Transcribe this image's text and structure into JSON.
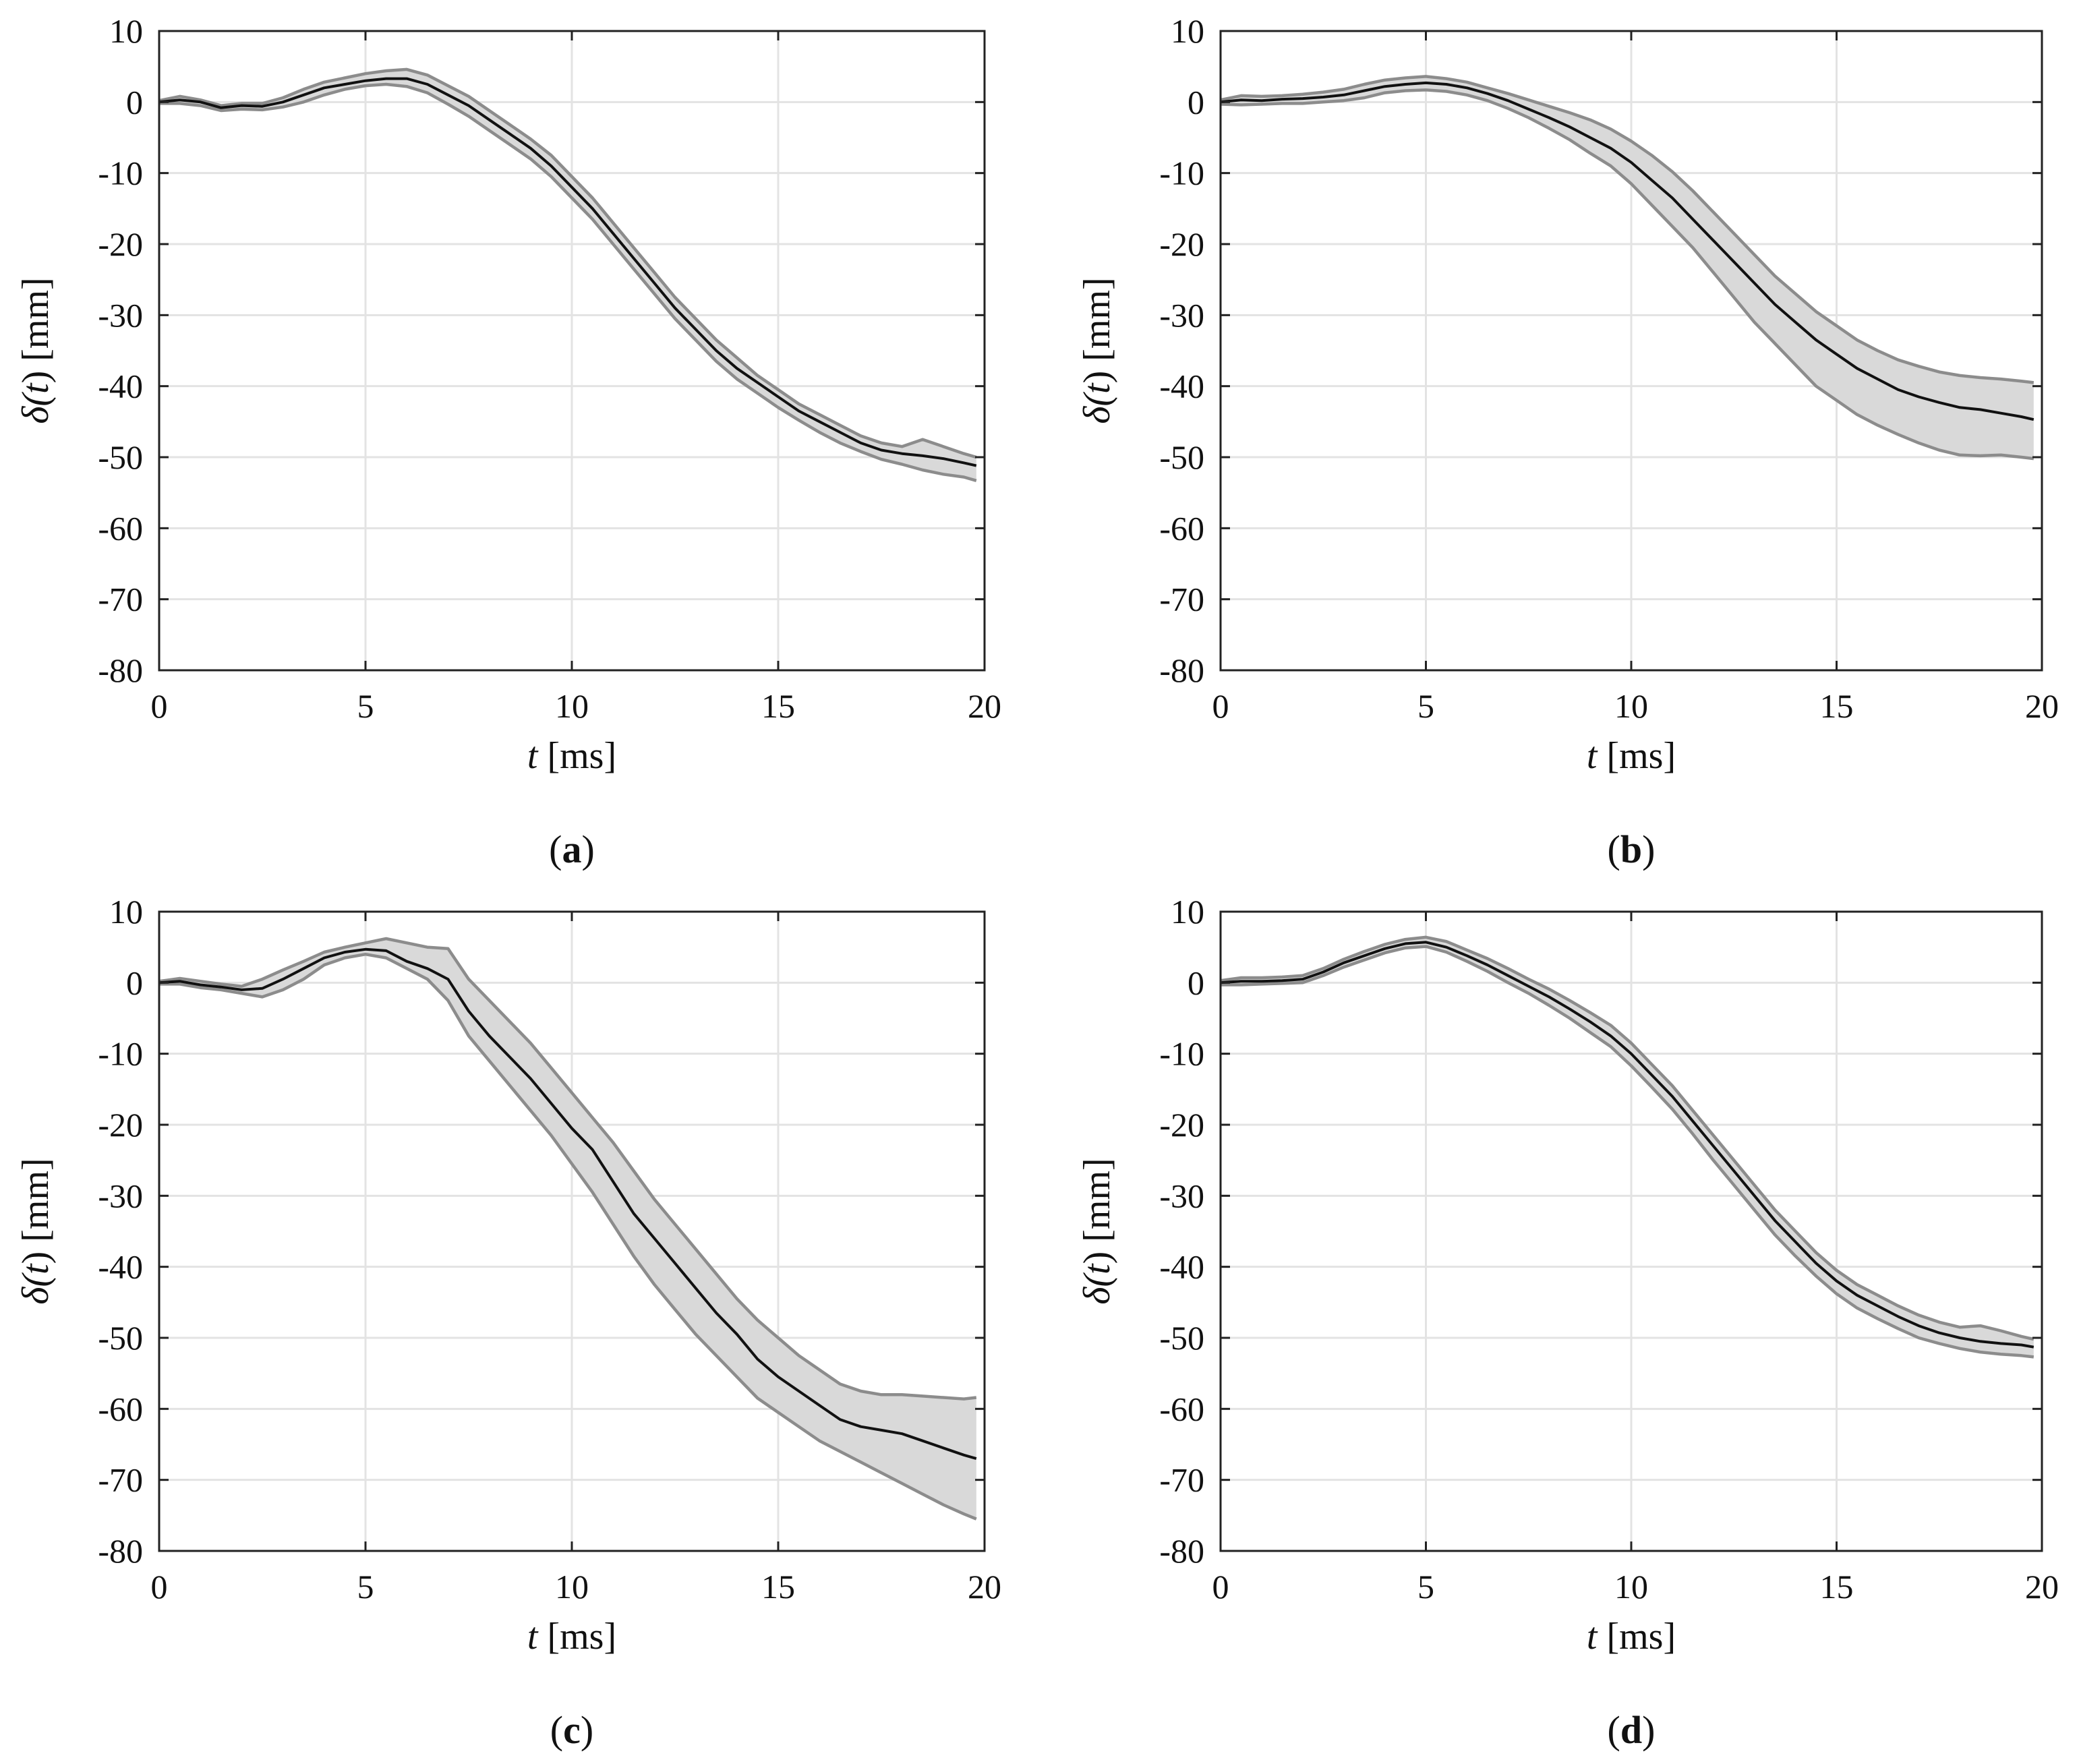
{
  "figure": {
    "panel_count": 4
  },
  "chart_data": [
    {
      "panel": "a",
      "type": "line",
      "caption": {
        "open": "(",
        "letter": "a",
        "close": ")"
      },
      "xlabel": {
        "symbol": "t",
        "unit": "[ms]"
      },
      "ylabel": {
        "prefix": "δ(",
        "symbol": "t",
        "suffix": ")",
        "unit": "[mm]"
      },
      "xlim": [
        0,
        20
      ],
      "ylim": [
        -80,
        10
      ],
      "xticks": [
        0,
        5,
        10,
        15,
        20
      ],
      "xtick_labels": [
        "0",
        "5",
        "10",
        "15",
        "20"
      ],
      "yticks": [
        10,
        0,
        -10,
        -20,
        -30,
        -40,
        -50,
        -60,
        -70,
        -80
      ],
      "ytick_labels": [
        "10",
        "0",
        "-10",
        "-20",
        "-30",
        "-40",
        "-50",
        "-60",
        "-70",
        "-80"
      ],
      "grid": true,
      "x": [
        0,
        0.5,
        1,
        1.5,
        2,
        2.5,
        3,
        3.5,
        4,
        4.5,
        5,
        5.5,
        6,
        6.5,
        7,
        7.5,
        8,
        8.5,
        9,
        9.5,
        10,
        10.5,
        11,
        11.5,
        12,
        12.5,
        13,
        13.5,
        14,
        14.5,
        15,
        15.5,
        16,
        16.5,
        17,
        17.5,
        18,
        18.5,
        19,
        19.5,
        19.8
      ],
      "mean": [
        0,
        0.3,
        0,
        -0.8,
        -0.5,
        -0.6,
        0,
        1,
        2,
        2.5,
        3,
        3.3,
        3.3,
        2.5,
        1,
        -0.5,
        -2.5,
        -4.5,
        -6.5,
        -9,
        -12,
        -15,
        -18.5,
        -22,
        -25.5,
        -29,
        -32,
        -35,
        -37.5,
        -39.5,
        -41.5,
        -43.5,
        -45,
        -46.5,
        -48,
        -49,
        -49.5,
        -49.8,
        -50.2,
        -50.8,
        -51.2
      ],
      "upper": [
        0.2,
        0.8,
        0.3,
        -0.5,
        -0.2,
        -0.2,
        0.6,
        1.8,
        2.8,
        3.4,
        4,
        4.4,
        4.6,
        3.8,
        2.3,
        0.8,
        -1.2,
        -3.2,
        -5.2,
        -7.5,
        -10.5,
        -13.5,
        -17,
        -20.5,
        -24,
        -27.5,
        -30.5,
        -33.5,
        -36,
        -38.5,
        -40.5,
        -42.5,
        -44,
        -45.5,
        -47,
        -48,
        -48.5,
        -47.5,
        -48.5,
        -49.5,
        -50
      ],
      "lower": [
        -0.2,
        -0.2,
        -0.5,
        -1.2,
        -1,
        -1.1,
        -0.7,
        0,
        1,
        1.8,
        2.3,
        2.5,
        2.2,
        1.3,
        -0.3,
        -2,
        -4,
        -6,
        -8,
        -10.5,
        -13.5,
        -16.5,
        -20,
        -23.5,
        -27,
        -30.5,
        -33.5,
        -36.5,
        -39,
        -41,
        -43,
        -44.8,
        -46.5,
        -48,
        -49.2,
        -50.3,
        -51,
        -51.8,
        -52.4,
        -52.8,
        -53.3
      ]
    },
    {
      "panel": "b",
      "type": "line",
      "caption": {
        "open": "(",
        "letter": "b",
        "close": ")"
      },
      "xlabel": {
        "symbol": "t",
        "unit": "[ms]"
      },
      "ylabel": {
        "prefix": "δ(",
        "symbol": "t",
        "suffix": ")",
        "unit": "[mm]"
      },
      "xlim": [
        0,
        20
      ],
      "ylim": [
        -80,
        10
      ],
      "xticks": [
        0,
        5,
        10,
        15,
        20
      ],
      "xtick_labels": [
        "0",
        "5",
        "10",
        "15",
        "20"
      ],
      "yticks": [
        10,
        0,
        -10,
        -20,
        -30,
        -40,
        -50,
        -60,
        -70,
        -80
      ],
      "ytick_labels": [
        "10",
        "0",
        "-10",
        "-20",
        "-30",
        "-40",
        "-50",
        "-60",
        "-70",
        "-80"
      ],
      "grid": true,
      "x": [
        0,
        0.5,
        1,
        1.5,
        2,
        2.5,
        3,
        3.5,
        4,
        4.5,
        5,
        5.5,
        6,
        6.5,
        7,
        7.5,
        8,
        8.5,
        9,
        9.5,
        10,
        10.5,
        11,
        11.5,
        12,
        12.5,
        13,
        13.5,
        14,
        14.5,
        15,
        15.5,
        16,
        16.5,
        17,
        17.5,
        18,
        18.5,
        19,
        19.5,
        19.8
      ],
      "mean": [
        0,
        0.3,
        0.2,
        0.4,
        0.5,
        0.7,
        1,
        1.6,
        2.2,
        2.5,
        2.7,
        2.5,
        2,
        1.2,
        0.2,
        -1,
        -2.2,
        -3.5,
        -5,
        -6.5,
        -8.5,
        -11,
        -13.5,
        -16.5,
        -19.5,
        -22.5,
        -25.5,
        -28.5,
        -31,
        -33.5,
        -35.5,
        -37.5,
        -39,
        -40.5,
        -41.5,
        -42.3,
        -43,
        -43.3,
        -43.8,
        -44.3,
        -44.7
      ],
      "upper": [
        0.3,
        0.9,
        0.8,
        0.9,
        1.1,
        1.4,
        1.8,
        2.5,
        3.1,
        3.4,
        3.6,
        3.3,
        2.8,
        2,
        1.2,
        0.3,
        -0.6,
        -1.5,
        -2.5,
        -3.8,
        -5.5,
        -7.5,
        -9.8,
        -12.5,
        -15.5,
        -18.5,
        -21.5,
        -24.5,
        -27,
        -29.5,
        -31.5,
        -33.5,
        -35,
        -36.3,
        -37.2,
        -38,
        -38.5,
        -38.8,
        -39,
        -39.3,
        -39.5
      ],
      "lower": [
        -0.3,
        -0.4,
        -0.3,
        -0.2,
        -0.2,
        0,
        0.2,
        0.6,
        1.3,
        1.6,
        1.7,
        1.5,
        1,
        0.2,
        -0.9,
        -2.2,
        -3.7,
        -5.3,
        -7.2,
        -9,
        -11.5,
        -14.5,
        -17.5,
        -20.5,
        -24,
        -27.5,
        -31,
        -34,
        -37,
        -40,
        -42,
        -44,
        -45.5,
        -46.8,
        -48,
        -49,
        -49.7,
        -49.8,
        -49.7,
        -50,
        -50.2
      ]
    },
    {
      "panel": "c",
      "type": "line",
      "caption": {
        "open": "(",
        "letter": "c",
        "close": ")"
      },
      "xlabel": {
        "symbol": "t",
        "unit": "[ms]"
      },
      "ylabel": {
        "prefix": "δ(",
        "symbol": "t",
        "suffix": ")",
        "unit": "[mm]"
      },
      "xlim": [
        0,
        20
      ],
      "ylim": [
        -80,
        10
      ],
      "xticks": [
        0,
        5,
        10,
        15,
        20
      ],
      "xtick_labels": [
        "0",
        "5",
        "10",
        "15",
        "20"
      ],
      "yticks": [
        10,
        0,
        -10,
        -20,
        -30,
        -40,
        -50,
        -60,
        -70,
        -80
      ],
      "ytick_labels": [
        "10",
        "0",
        "-10",
        "-20",
        "-30",
        "-40",
        "-50",
        "-60",
        "-70",
        "-80"
      ],
      "grid": true,
      "x": [
        0,
        0.5,
        1,
        1.5,
        2,
        2.5,
        3,
        3.5,
        4,
        4.5,
        5,
        5.5,
        6,
        6.5,
        7,
        7.5,
        8,
        8.5,
        9,
        9.5,
        10,
        10.5,
        11,
        11.5,
        12,
        12.5,
        13,
        13.5,
        14,
        14.5,
        15,
        15.5,
        16,
        16.5,
        17,
        17.5,
        18,
        18.5,
        19,
        19.5,
        19.8
      ],
      "mean": [
        0,
        0.2,
        -0.3,
        -0.6,
        -1,
        -0.8,
        0.5,
        2,
        3.5,
        4.3,
        4.7,
        4.5,
        3,
        2,
        0.5,
        -4,
        -7.5,
        -10.5,
        -13.5,
        -17,
        -20.5,
        -23.5,
        -28,
        -32.5,
        -36,
        -39.5,
        -43,
        -46.5,
        -49.5,
        -53,
        -55.5,
        -57.5,
        -59.5,
        -61.5,
        -62.5,
        -63,
        -63.5,
        -64.5,
        -65.5,
        -66.5,
        -67
      ],
      "upper": [
        0.2,
        0.6,
        0.2,
        -0.2,
        -0.5,
        0.5,
        1.8,
        3,
        4.3,
        5,
        5.6,
        6.2,
        5.6,
        5,
        4.8,
        0.5,
        -2.5,
        -5.5,
        -8.5,
        -12,
        -15.5,
        -19,
        -22.5,
        -26.5,
        -30.5,
        -34,
        -37.5,
        -41,
        -44.5,
        -47.5,
        -50,
        -52.5,
        -54.5,
        -56.5,
        -57.5,
        -58,
        -58,
        -58.2,
        -58.4,
        -58.6,
        -58.4
      ],
      "lower": [
        -0.2,
        -0.2,
        -0.7,
        -1,
        -1.5,
        -2,
        -1,
        0.5,
        2.5,
        3.5,
        4,
        3.5,
        2,
        0.5,
        -2.5,
        -7.5,
        -11,
        -14.5,
        -18,
        -21.5,
        -25.5,
        -29.5,
        -34,
        -38.5,
        -42.5,
        -46,
        -49.5,
        -52.5,
        -55.5,
        -58.5,
        -60.5,
        -62.5,
        -64.5,
        -66,
        -67.5,
        -69,
        -70.5,
        -72,
        -73.5,
        -74.8,
        -75.5
      ]
    },
    {
      "panel": "d",
      "type": "line",
      "caption": {
        "open": "(",
        "letter": "d",
        "close": ")"
      },
      "xlabel": {
        "symbol": "t",
        "unit": "[ms]"
      },
      "ylabel": {
        "prefix": "δ(",
        "symbol": "t",
        "suffix": ")",
        "unit": "[mm]"
      },
      "xlim": [
        0,
        20
      ],
      "ylim": [
        -80,
        10
      ],
      "xticks": [
        0,
        5,
        10,
        15,
        20
      ],
      "xtick_labels": [
        "0",
        "5",
        "10",
        "15",
        "20"
      ],
      "yticks": [
        10,
        0,
        -10,
        -20,
        -30,
        -40,
        -50,
        -60,
        -70,
        -80
      ],
      "ytick_labels": [
        "10",
        "0",
        "-10",
        "-20",
        "-30",
        "-40",
        "-50",
        "-60",
        "-70",
        "-80"
      ],
      "grid": true,
      "x": [
        0,
        0.5,
        1,
        1.5,
        2,
        2.5,
        3,
        3.5,
        4,
        4.5,
        5,
        5.5,
        6,
        6.5,
        7,
        7.5,
        8,
        8.5,
        9,
        9.5,
        10,
        10.5,
        11,
        11.5,
        12,
        12.5,
        13,
        13.5,
        14,
        14.5,
        15,
        15.5,
        16,
        16.5,
        17,
        17.5,
        18,
        18.5,
        19,
        19.5,
        19.8
      ],
      "mean": [
        0,
        0.2,
        0.2,
        0.3,
        0.5,
        1.5,
        2.8,
        3.8,
        4.8,
        5.5,
        5.7,
        5,
        3.8,
        2.5,
        1,
        -0.5,
        -2,
        -3.7,
        -5.5,
        -7.5,
        -10,
        -13,
        -16,
        -19.5,
        -23,
        -26.5,
        -30,
        -33.5,
        -36.5,
        -39.5,
        -42,
        -44,
        -45.5,
        -47,
        -48.3,
        -49.3,
        -50,
        -50.5,
        -50.8,
        -51,
        -51.3
      ],
      "upper": [
        0.3,
        0.7,
        0.7,
        0.8,
        1,
        2,
        3.3,
        4.4,
        5.4,
        6.1,
        6.4,
        5.8,
        4.6,
        3.4,
        2,
        0.5,
        -0.9,
        -2.5,
        -4.2,
        -6,
        -8.5,
        -11.5,
        -14.5,
        -18,
        -21.5,
        -25,
        -28.5,
        -32,
        -35,
        -38,
        -40.5,
        -42.5,
        -44,
        -45.5,
        -46.8,
        -47.8,
        -48.5,
        -48.3,
        -49,
        -49.8,
        -50.2
      ],
      "lower": [
        -0.3,
        -0.3,
        -0.2,
        -0.1,
        0,
        1,
        2.2,
        3.2,
        4.2,
        4.9,
        5.1,
        4.3,
        3,
        1.6,
        0,
        -1.5,
        -3.2,
        -5,
        -7,
        -9,
        -11.7,
        -14.7,
        -17.8,
        -21.3,
        -25,
        -28.5,
        -32,
        -35.5,
        -38.5,
        -41.3,
        -43.8,
        -45.8,
        -47.3,
        -48.7,
        -50,
        -50.8,
        -51.5,
        -52,
        -52.3,
        -52.5,
        -52.7
      ]
    }
  ]
}
